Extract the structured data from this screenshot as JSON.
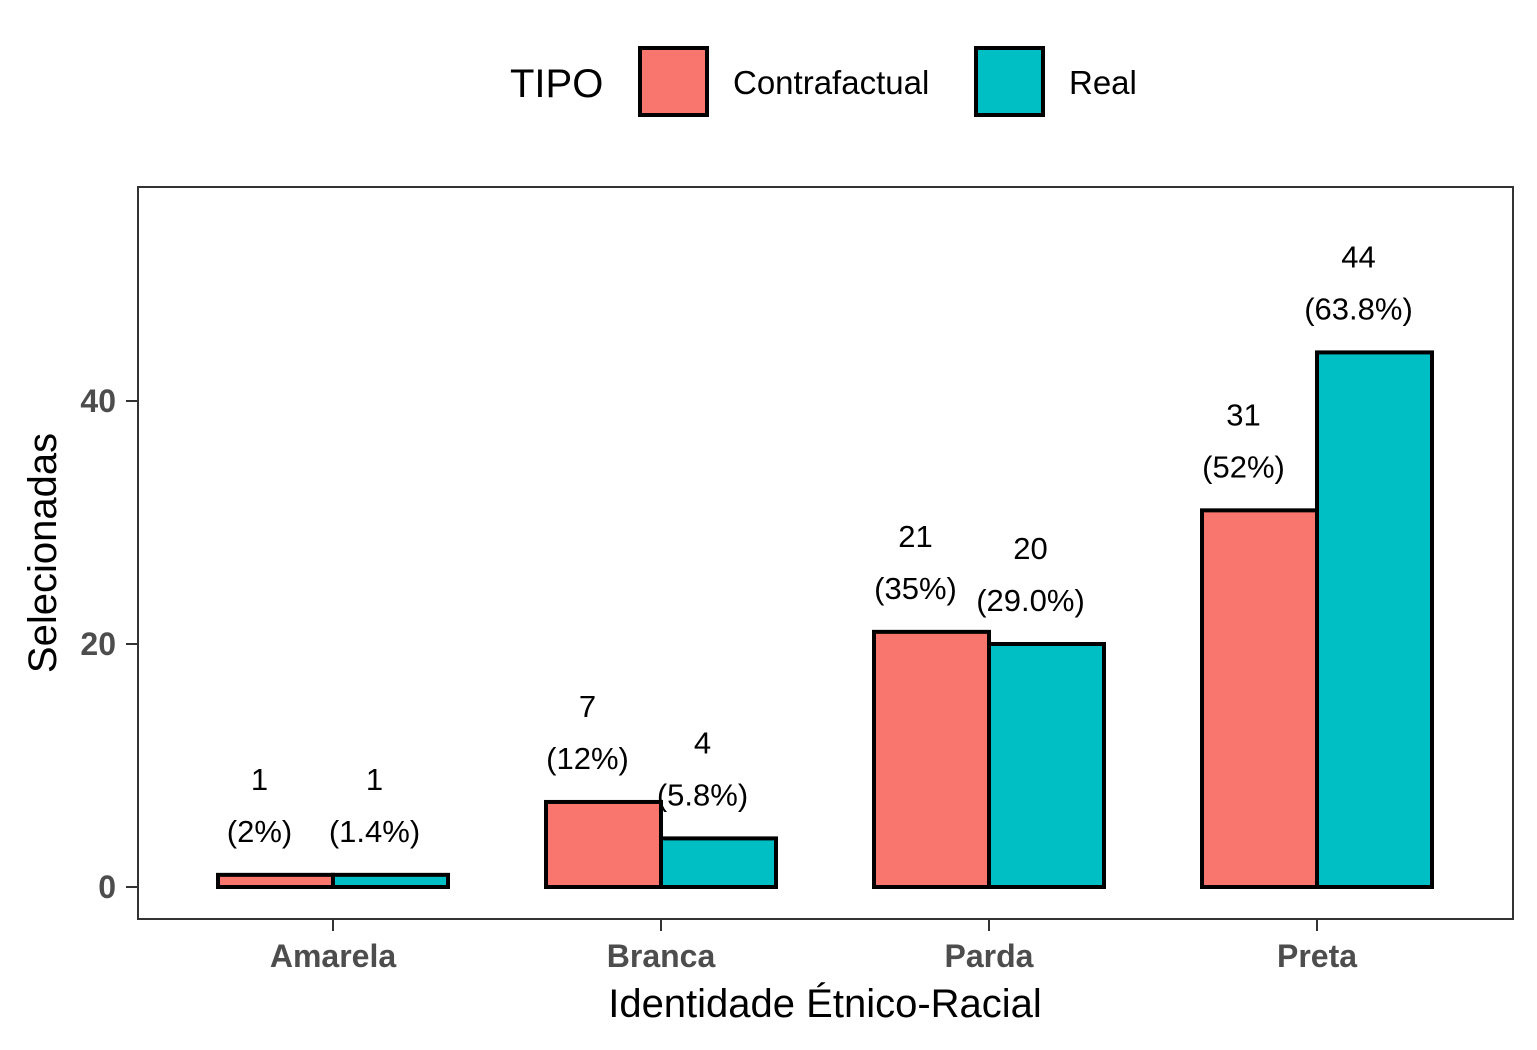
{
  "chart_data": {
    "type": "bar",
    "categories": [
      "Amarela",
      "Branca",
      "Parda",
      "Preta"
    ],
    "series": [
      {
        "name": "Contrafactual",
        "color": "#F8766D",
        "values": [
          1,
          7,
          21,
          31
        ],
        "labels": [
          "(2%)",
          "(12%)",
          "(35%)",
          "(52%)"
        ]
      },
      {
        "name": "Real",
        "color": "#00BFC4",
        "values": [
          1,
          4,
          20,
          44
        ],
        "labels": [
          "(1.4%)",
          "(5.8%)",
          "(29.0%)",
          "(63.8%)"
        ]
      }
    ],
    "legend": {
      "title": "TIPO",
      "position": "top"
    },
    "xlabel": "Identidade Étnico-Racial",
    "ylabel": "Selecionadas",
    "yticks": [
      0,
      20,
      40
    ],
    "ylim": [
      -2.2,
      58.2
    ],
    "grid": false
  }
}
